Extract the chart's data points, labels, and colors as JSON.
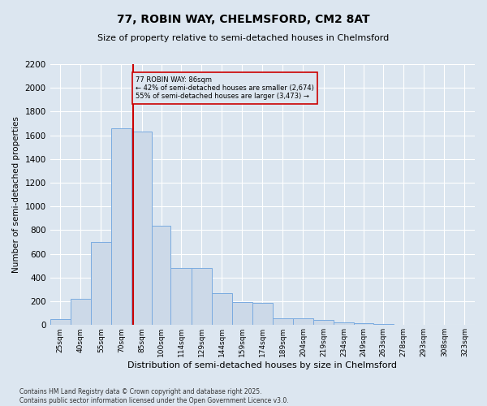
{
  "title": "77, ROBIN WAY, CHELMSFORD, CM2 8AT",
  "subtitle": "Size of property relative to semi-detached houses in Chelmsford",
  "xlabel": "Distribution of semi-detached houses by size in Chelmsford",
  "ylabel": "Number of semi-detached properties",
  "footer": "Contains HM Land Registry data © Crown copyright and database right 2025.\nContains public sector information licensed under the Open Government Licence v3.0.",
  "bar_color": "#ccd9e8",
  "bar_edge_color": "#7aabe0",
  "bg_color": "#dce6f0",
  "grid_color": "#ffffff",
  "annotation_box_color": "#cc0000",
  "annotation_text": "77 ROBIN WAY: 86sqm\n← 42% of semi-detached houses are smaller (2,674)\n55% of semi-detached houses are larger (3,473) →",
  "property_line_x": 86,
  "property_line_color": "#cc0000",
  "categories": [
    "25sqm",
    "40sqm",
    "55sqm",
    "70sqm",
    "85sqm",
    "100sqm",
    "114sqm",
    "129sqm",
    "144sqm",
    "159sqm",
    "174sqm",
    "189sqm",
    "204sqm",
    "219sqm",
    "234sqm",
    "249sqm",
    "263sqm",
    "278sqm",
    "293sqm",
    "308sqm",
    "323sqm"
  ],
  "bin_edges": [
    25,
    40,
    55,
    70,
    85,
    100,
    114,
    129,
    144,
    159,
    174,
    189,
    204,
    219,
    234,
    249,
    263,
    278,
    293,
    308,
    323,
    338
  ],
  "values": [
    50,
    220,
    700,
    1660,
    1630,
    840,
    480,
    480,
    270,
    195,
    185,
    60,
    55,
    40,
    20,
    15,
    10,
    5,
    2,
    0,
    0
  ],
  "ylim": [
    0,
    2200
  ],
  "yticks": [
    0,
    200,
    400,
    600,
    800,
    1000,
    1200,
    1400,
    1600,
    1800,
    2000,
    2200
  ]
}
